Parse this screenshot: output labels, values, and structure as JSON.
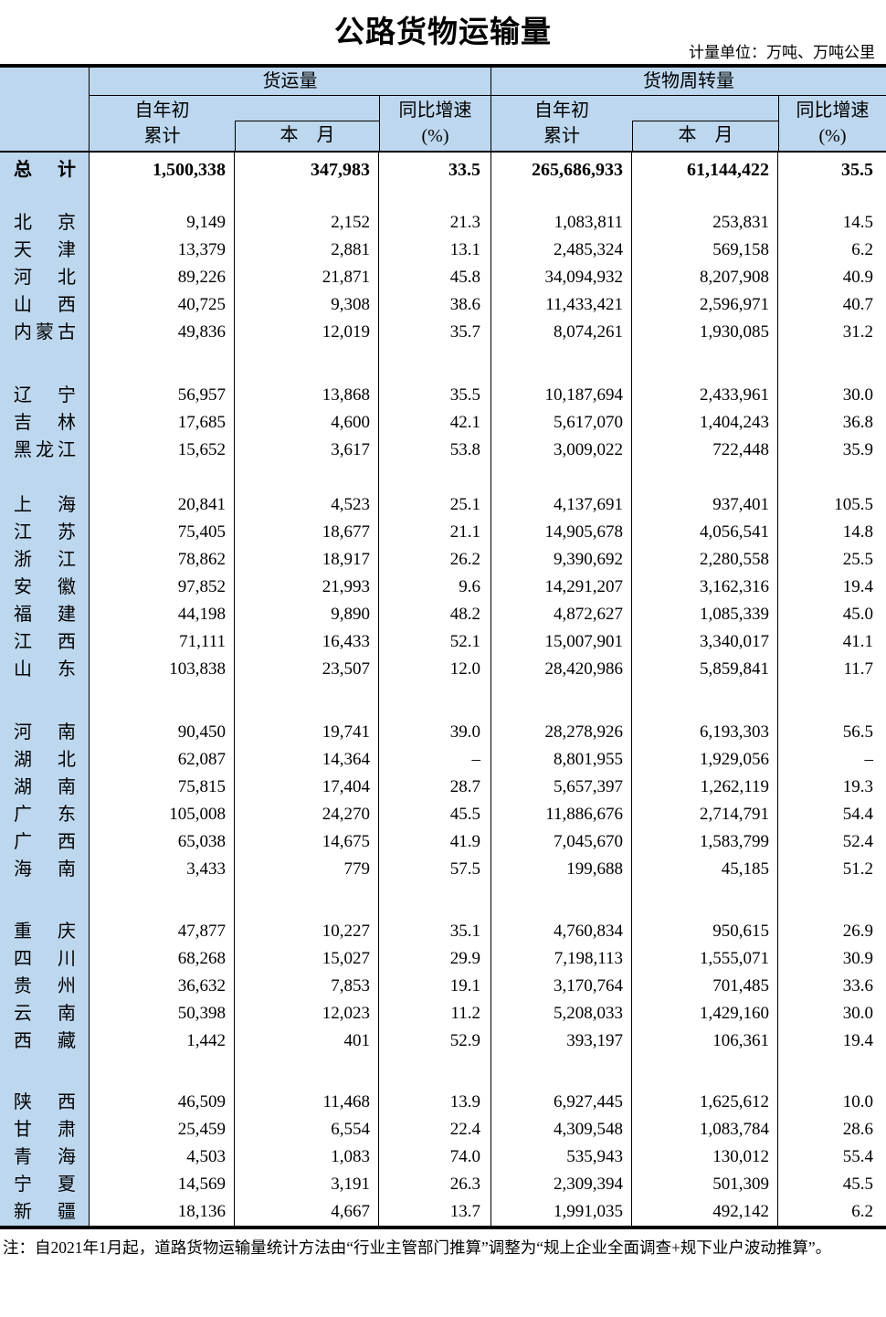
{
  "title": "公路货物运输量",
  "unit_note": "计量单位：万吨、万吨公里",
  "colors": {
    "header_bg": "#BDD7EE",
    "border": "#000000",
    "text": "#000000"
  },
  "header": {
    "group1": "货运量",
    "group2": "货物周转量",
    "cumulative_line1": "自年初",
    "cumulative_line2": "累计",
    "month": "本　月",
    "yoy_line1": "同比增速",
    "yoy_line2": "(%)"
  },
  "table": {
    "total": {
      "label": "总计",
      "values": [
        "1,500,338",
        "347,983",
        "33.5",
        "265,686,933",
        "61,144,422",
        "35.5"
      ]
    },
    "groups": [
      {
        "gap_before": 24,
        "rows": [
          {
            "label": "北京",
            "values": [
              "9,149",
              "2,152",
              "21.3",
              "1,083,811",
              "253,831",
              "14.5"
            ]
          },
          {
            "label": "天津",
            "values": [
              "13,379",
              "2,881",
              "13.1",
              "2,485,324",
              "569,158",
              "6.2"
            ]
          },
          {
            "label": "河北",
            "values": [
              "89,226",
              "21,871",
              "45.8",
              "34,094,932",
              "8,207,908",
              "40.9"
            ]
          },
          {
            "label": "山西",
            "values": [
              "40,725",
              "9,308",
              "38.6",
              "11,433,421",
              "2,596,971",
              "40.7"
            ]
          },
          {
            "label": "内蒙古",
            "values": [
              "49,836",
              "12,019",
              "35.7",
              "8,074,261",
              "1,930,085",
              "31.2"
            ]
          }
        ]
      },
      {
        "gap_before": 39,
        "rows": [
          {
            "label": "辽宁",
            "values": [
              "56,957",
              "13,868",
              "35.5",
              "10,187,694",
              "2,433,961",
              "30.0"
            ]
          },
          {
            "label": "吉林",
            "values": [
              "17,685",
              "4,600",
              "42.1",
              "5,617,070",
              "1,404,243",
              "36.8"
            ]
          },
          {
            "label": "黑龙江",
            "values": [
              "15,652",
              "3,617",
              "53.8",
              "3,009,022",
              "722,448",
              "35.9"
            ]
          }
        ]
      },
      {
        "gap_before": 30,
        "rows": [
          {
            "label": "上海",
            "values": [
              "20,841",
              "4,523",
              "25.1",
              "4,137,691",
              "937,401",
              "105.5"
            ]
          },
          {
            "label": "江苏",
            "values": [
              "75,405",
              "18,677",
              "21.1",
              "14,905,678",
              "4,056,541",
              "14.8"
            ]
          },
          {
            "label": "浙江",
            "values": [
              "78,862",
              "18,917",
              "26.2",
              "9,390,692",
              "2,280,558",
              "25.5"
            ]
          },
          {
            "label": "安徽",
            "values": [
              "97,852",
              "21,993",
              "9.6",
              "14,291,207",
              "3,162,316",
              "19.4"
            ]
          },
          {
            "label": "福建",
            "values": [
              "44,198",
              "9,890",
              "48.2",
              "4,872,627",
              "1,085,339",
              "45.0"
            ]
          },
          {
            "label": "江西",
            "values": [
              "71,111",
              "16,433",
              "52.1",
              "15,007,901",
              "3,340,017",
              "41.1"
            ]
          },
          {
            "label": "山东",
            "values": [
              "103,838",
              "23,507",
              "12.0",
              "28,420,986",
              "5,859,841",
              "11.7"
            ]
          }
        ]
      },
      {
        "gap_before": 39,
        "rows": [
          {
            "label": "河南",
            "values": [
              "90,450",
              "19,741",
              "39.0",
              "28,278,926",
              "6,193,303",
              "56.5"
            ]
          },
          {
            "label": "湖北",
            "values": [
              "62,087",
              "14,364",
              "–",
              "8,801,955",
              "1,929,056",
              "–"
            ]
          },
          {
            "label": "湖南",
            "values": [
              "75,815",
              "17,404",
              "28.7",
              "5,657,397",
              "1,262,119",
              "19.3"
            ]
          },
          {
            "label": "广东",
            "values": [
              "105,008",
              "24,270",
              "45.5",
              "11,886,676",
              "2,714,791",
              "54.4"
            ]
          },
          {
            "label": "广西",
            "values": [
              "65,038",
              "14,675",
              "41.9",
              "7,045,670",
              "1,583,799",
              "52.4"
            ]
          },
          {
            "label": "海南",
            "values": [
              "3,433",
              "779",
              "57.5",
              "199,688",
              "45,185",
              "51.2"
            ]
          }
        ]
      },
      {
        "gap_before": 38,
        "rows": [
          {
            "label": "重庆",
            "values": [
              "47,877",
              "10,227",
              "35.1",
              "4,760,834",
              "950,615",
              "26.9"
            ]
          },
          {
            "label": "四川",
            "values": [
              "68,268",
              "15,027",
              "29.9",
              "7,198,113",
              "1,555,071",
              "30.9"
            ]
          },
          {
            "label": "贵州",
            "values": [
              "36,632",
              "7,853",
              "19.1",
              "3,170,764",
              "701,485",
              "33.6"
            ]
          },
          {
            "label": "云南",
            "values": [
              "50,398",
              "12,023",
              "11.2",
              "5,208,033",
              "1,429,160",
              "30.0"
            ]
          },
          {
            "label": "西藏",
            "values": [
              "1,442",
              "401",
              "52.9",
              "393,197",
              "106,361",
              "19.4"
            ]
          }
        ]
      },
      {
        "gap_before": 37,
        "rows": [
          {
            "label": "陕西",
            "values": [
              "46,509",
              "11,468",
              "13.9",
              "6,927,445",
              "1,625,612",
              "10.0"
            ]
          },
          {
            "label": "甘肃",
            "values": [
              "25,459",
              "6,554",
              "22.4",
              "4,309,548",
              "1,083,784",
              "28.6"
            ]
          },
          {
            "label": "青海",
            "values": [
              "4,503",
              "1,083",
              "74.0",
              "535,943",
              "130,012",
              "55.4"
            ]
          },
          {
            "label": "宁夏",
            "values": [
              "14,569",
              "3,191",
              "26.3",
              "2,309,394",
              "501,309",
              "45.5"
            ]
          },
          {
            "label": "新疆",
            "values": [
              "18,136",
              "4,667",
              "13.7",
              "1,991,035",
              "492,142",
              "6.2"
            ]
          }
        ]
      }
    ]
  },
  "footnote": "注：自2021年1月起，道路货物运输量统计方法由“行业主管部门推算”调整为“规上企业全面调查+规下业户波动推算”。"
}
